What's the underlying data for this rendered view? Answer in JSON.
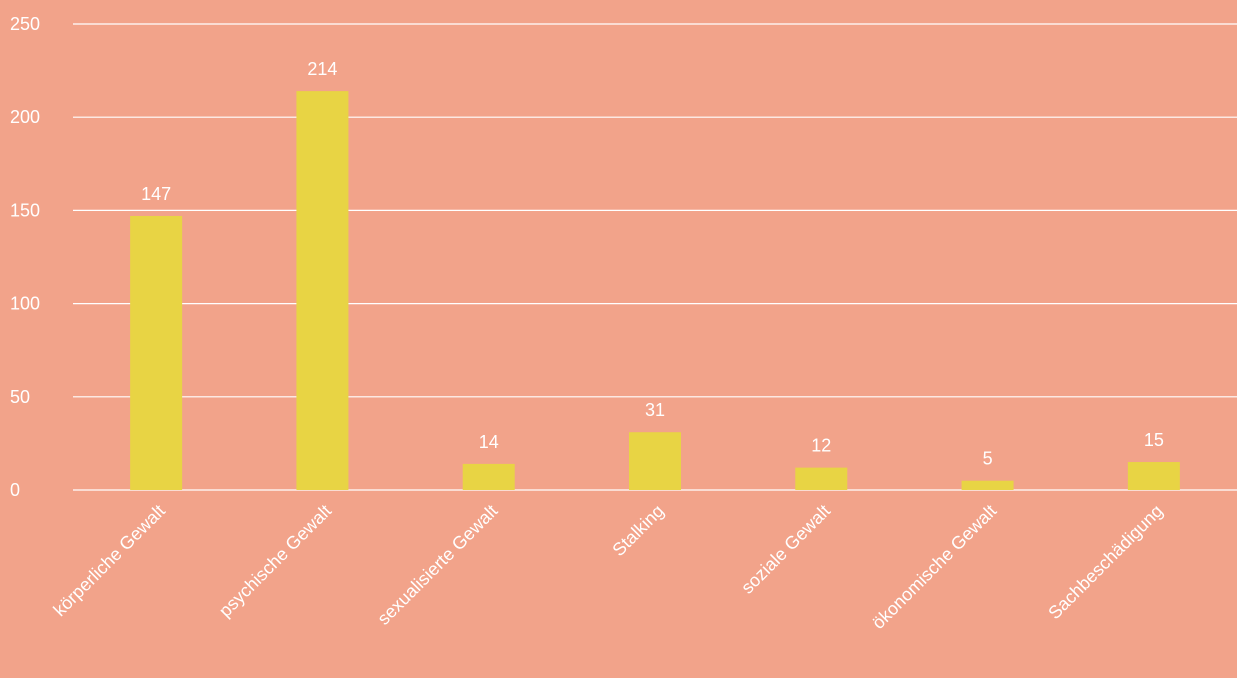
{
  "chart_data": {
    "type": "bar",
    "categories": [
      "körperliche Gewalt",
      "psychische Gewalt",
      "sexualisierte Gewalt",
      "Stalking",
      "soziale Gewalt",
      "ökonomische Gewalt",
      "Sachbeschädigung"
    ],
    "values": [
      147,
      214,
      14,
      31,
      12,
      5,
      15
    ],
    "color": "#e8d444",
    "ylim": [
      0,
      250
    ],
    "yticks": [
      0,
      50,
      100,
      150,
      200,
      250
    ],
    "grid": true
  }
}
